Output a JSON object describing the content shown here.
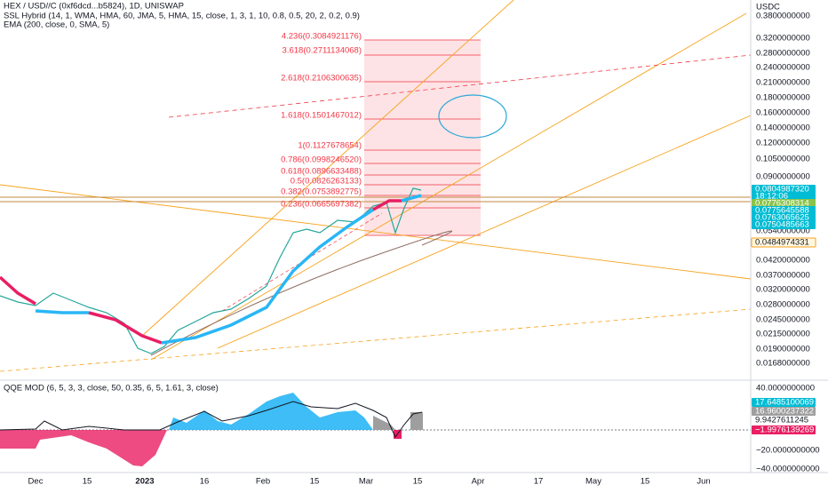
{
  "header": {
    "title": "HEX / USD//C (0xf6dcd...b5824), 1D, UNISWAP",
    "indicators": [
      "SSL Hybrid (14, 1, WMA, HMA, 60, JMA, 5, HMA, 15, close, 1, 3, 1, 10, 0.8, 0.5, 20, 2, 0.2, 0.9)",
      "EMA (200, close, 0, SMA, 5)"
    ]
  },
  "price_axis": {
    "currency": "USDC",
    "labels": [
      "0.3800000000",
      "0.3200000000",
      "0.2800000000",
      "0.2400000000",
      "0.2100000000",
      "0.1800000000",
      "0.1600000000",
      "0.1400000000",
      "0.1200000000",
      "0.1050000000",
      "0.0900000000",
      "0.0540000000",
      "0.0420000000",
      "0.0370000000",
      "0.0320000000",
      "0.0280000000",
      "0.0245000000",
      "0.0215000000",
      "0.0190000000",
      "0.0168000000"
    ]
  },
  "fib_levels": [
    "4.236(0.3084921176)",
    "3.618(0.2711134068)",
    "2.618(0.2106300635)",
    "1.618(0.1501467012)",
    "1(0.1127678654)",
    "0.786(0.0998246520)",
    "0.618(0.0896633488)",
    "0.5(0.0826263133)",
    "0.382(0.0753892775)",
    "0.236(0.0665697382)"
  ],
  "price_tags": [
    "0.0804987320",
    "18:12:06",
    "0.0776308314",
    "0.0775645588",
    "0.0763065625",
    "0.0750485663",
    "0.0484974331"
  ],
  "oscillator": {
    "title": "QQE MOD (6, 5, 3, 3, close, 50, 0.35, 6, 5, 1.61, 3, close)",
    "axis_labels": [
      "40.0000000000",
      "20.0000000000",
      "−20.0000000000",
      "−40.0000000000"
    ],
    "tags": [
      "17.6485100069",
      "16.9600237322",
      "9.9427611245",
      "−1.9976139269"
    ]
  },
  "time_axis": [
    "Dec",
    "15",
    "2023",
    "16",
    "Feb",
    "15",
    "Mar",
    "15",
    "Apr",
    "17",
    "May",
    "15",
    "Jun"
  ]
}
